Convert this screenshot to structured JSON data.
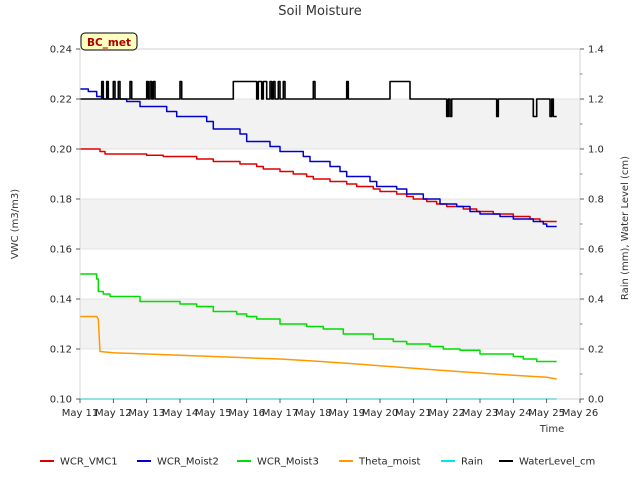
{
  "chart_data": {
    "type": "line",
    "title": "Soil Moisture",
    "site_label": "BC_met",
    "xlabel": "Time",
    "ylabel_left": "VWC (m3/m3)",
    "ylabel_right": "Rain (mm), Water Level (cm)",
    "x_range": [
      11,
      26
    ],
    "x_ticks": [
      11,
      12,
      13,
      14,
      15,
      16,
      17,
      18,
      19,
      20,
      21,
      22,
      23,
      24,
      25,
      26
    ],
    "x_tick_labels": [
      "May 11",
      "May 12",
      "May 13",
      "May 14",
      "May 15",
      "May 16",
      "May 17",
      "May 18",
      "May 19",
      "May 20",
      "May 21",
      "May 22",
      "May 23",
      "May 24",
      "May 25",
      "May 26"
    ],
    "ylim_left": [
      0.1,
      0.24
    ],
    "y_ticks_left": [
      0.1,
      0.12,
      0.14,
      0.16,
      0.18,
      0.2,
      0.22,
      0.24
    ],
    "y_tick_labels_left": [
      "0.10",
      "0.12",
      "0.14",
      "0.16",
      "0.18",
      "0.20",
      "0.22",
      "0.24"
    ],
    "ylim_right": [
      0.0,
      1.4
    ],
    "y_ticks_right": [
      0.0,
      0.2,
      0.4,
      0.6,
      0.8,
      1.0,
      1.2,
      1.4
    ],
    "y_tick_labels_right": [
      "0.0",
      "0.2",
      "0.4",
      "0.6",
      "0.8",
      "1.0",
      "1.2",
      "1.4"
    ],
    "series": [
      {
        "name": "WCR_VMC1",
        "color": "#dd0000",
        "axis": "left",
        "step": true,
        "points": [
          [
            11.0,
            0.2
          ],
          [
            11.6,
            0.199
          ],
          [
            11.75,
            0.198
          ],
          [
            13.0,
            0.1975
          ],
          [
            13.5,
            0.197
          ],
          [
            14.2,
            0.197
          ],
          [
            14.5,
            0.196
          ],
          [
            15.0,
            0.195
          ],
          [
            15.8,
            0.194
          ],
          [
            16.3,
            0.193
          ],
          [
            16.5,
            0.192
          ],
          [
            17.0,
            0.191
          ],
          [
            17.4,
            0.19
          ],
          [
            17.8,
            0.189
          ],
          [
            18.0,
            0.188
          ],
          [
            18.5,
            0.187
          ],
          [
            19.0,
            0.186
          ],
          [
            19.3,
            0.185
          ],
          [
            19.8,
            0.184
          ],
          [
            20.0,
            0.183
          ],
          [
            20.5,
            0.182
          ],
          [
            20.8,
            0.181
          ],
          [
            21.0,
            0.18
          ],
          [
            21.4,
            0.179
          ],
          [
            21.7,
            0.178
          ],
          [
            22.0,
            0.177
          ],
          [
            22.5,
            0.176
          ],
          [
            22.9,
            0.175
          ],
          [
            23.4,
            0.174
          ],
          [
            24.0,
            0.173
          ],
          [
            24.5,
            0.172
          ],
          [
            24.8,
            0.171
          ],
          [
            25.3,
            0.171
          ]
        ]
      },
      {
        "name": "WCR_Moist2",
        "color": "#0000cc",
        "axis": "left",
        "step": true,
        "points": [
          [
            11.0,
            0.224
          ],
          [
            11.25,
            0.223
          ],
          [
            11.5,
            0.221
          ],
          [
            11.7,
            0.22
          ],
          [
            12.4,
            0.219
          ],
          [
            12.8,
            0.217
          ],
          [
            13.6,
            0.215
          ],
          [
            13.9,
            0.213
          ],
          [
            14.8,
            0.211
          ],
          [
            15.0,
            0.208
          ],
          [
            15.8,
            0.206
          ],
          [
            16.0,
            0.203
          ],
          [
            16.7,
            0.201
          ],
          [
            17.0,
            0.199
          ],
          [
            17.7,
            0.197
          ],
          [
            17.9,
            0.195
          ],
          [
            18.5,
            0.193
          ],
          [
            18.8,
            0.191
          ],
          [
            19.0,
            0.189
          ],
          [
            19.7,
            0.187
          ],
          [
            19.9,
            0.185
          ],
          [
            20.5,
            0.184
          ],
          [
            20.8,
            0.182
          ],
          [
            21.3,
            0.18
          ],
          [
            21.8,
            0.178
          ],
          [
            22.3,
            0.177
          ],
          [
            22.7,
            0.175
          ],
          [
            23.0,
            0.174
          ],
          [
            23.6,
            0.173
          ],
          [
            24.0,
            0.172
          ],
          [
            24.6,
            0.171
          ],
          [
            24.9,
            0.17
          ],
          [
            25.0,
            0.169
          ],
          [
            25.3,
            0.169
          ]
        ]
      },
      {
        "name": "WCR_Moist3",
        "color": "#00dd00",
        "axis": "left",
        "step": true,
        "points": [
          [
            11.0,
            0.15
          ],
          [
            11.5,
            0.148
          ],
          [
            11.55,
            0.143
          ],
          [
            11.7,
            0.142
          ],
          [
            11.9,
            0.141
          ],
          [
            12.8,
            0.139
          ],
          [
            14.0,
            0.138
          ],
          [
            14.5,
            0.137
          ],
          [
            15.0,
            0.135
          ],
          [
            15.7,
            0.134
          ],
          [
            16.0,
            0.133
          ],
          [
            16.3,
            0.132
          ],
          [
            16.8,
            0.132
          ],
          [
            17.0,
            0.13
          ],
          [
            17.5,
            0.13
          ],
          [
            17.8,
            0.129
          ],
          [
            18.3,
            0.128
          ],
          [
            18.9,
            0.126
          ],
          [
            19.8,
            0.124
          ],
          [
            20.4,
            0.123
          ],
          [
            20.8,
            0.122
          ],
          [
            21.5,
            0.121
          ],
          [
            21.9,
            0.12
          ],
          [
            22.4,
            0.1195
          ],
          [
            23.0,
            0.118
          ],
          [
            24.0,
            0.117
          ],
          [
            24.3,
            0.116
          ],
          [
            24.7,
            0.115
          ],
          [
            25.3,
            0.115
          ]
        ]
      },
      {
        "name": "Theta_moist",
        "color": "#ff9900",
        "axis": "left",
        "step": false,
        "points": [
          [
            11.0,
            0.133
          ],
          [
            11.5,
            0.133
          ],
          [
            11.55,
            0.132
          ],
          [
            11.6,
            0.119
          ],
          [
            12.0,
            0.1185
          ],
          [
            13.0,
            0.118
          ],
          [
            14.0,
            0.1175
          ],
          [
            15.0,
            0.117
          ],
          [
            16.0,
            0.1165
          ],
          [
            17.0,
            0.116
          ],
          [
            18.0,
            0.1152
          ],
          [
            19.0,
            0.1143
          ],
          [
            20.0,
            0.1133
          ],
          [
            21.0,
            0.1123
          ],
          [
            22.0,
            0.1113
          ],
          [
            23.0,
            0.1104
          ],
          [
            24.0,
            0.1095
          ],
          [
            25.0,
            0.1087
          ],
          [
            25.3,
            0.108
          ]
        ]
      },
      {
        "name": "Rain",
        "color": "#00e5e5",
        "axis": "right",
        "step": false,
        "points": [
          [
            11.0,
            0.0
          ],
          [
            25.3,
            0.0
          ]
        ]
      },
      {
        "name": "WaterLevel_cm",
        "color": "#000000",
        "axis": "right",
        "step": true,
        "points": [
          [
            11.0,
            1.2
          ],
          [
            11.6,
            1.2
          ],
          [
            11.65,
            1.27
          ],
          [
            11.7,
            1.2
          ],
          [
            11.8,
            1.27
          ],
          [
            11.85,
            1.2
          ],
          [
            12.0,
            1.27
          ],
          [
            12.05,
            1.2
          ],
          [
            12.15,
            1.27
          ],
          [
            12.2,
            1.2
          ],
          [
            12.5,
            1.27
          ],
          [
            12.55,
            1.2
          ],
          [
            13.0,
            1.27
          ],
          [
            13.05,
            1.2
          ],
          [
            13.1,
            1.27
          ],
          [
            13.15,
            1.2
          ],
          [
            13.2,
            1.27
          ],
          [
            13.25,
            1.2
          ],
          [
            14.0,
            1.27
          ],
          [
            14.05,
            1.2
          ],
          [
            15.6,
            1.27
          ],
          [
            16.3,
            1.2
          ],
          [
            16.35,
            1.27
          ],
          [
            16.45,
            1.2
          ],
          [
            16.5,
            1.27
          ],
          [
            16.6,
            1.2
          ],
          [
            16.7,
            1.27
          ],
          [
            16.75,
            1.2
          ],
          [
            16.8,
            1.27
          ],
          [
            16.85,
            1.2
          ],
          [
            16.95,
            1.27
          ],
          [
            17.0,
            1.2
          ],
          [
            17.1,
            1.27
          ],
          [
            17.15,
            1.2
          ],
          [
            18.0,
            1.27
          ],
          [
            18.05,
            1.2
          ],
          [
            19.0,
            1.27
          ],
          [
            19.05,
            1.2
          ],
          [
            20.3,
            1.27
          ],
          [
            20.9,
            1.2
          ],
          [
            22.0,
            1.13
          ],
          [
            22.05,
            1.2
          ],
          [
            22.1,
            1.13
          ],
          [
            22.15,
            1.2
          ],
          [
            23.5,
            1.13
          ],
          [
            23.55,
            1.2
          ],
          [
            24.6,
            1.13
          ],
          [
            24.7,
            1.2
          ],
          [
            25.1,
            1.13
          ],
          [
            25.15,
            1.2
          ],
          [
            25.2,
            1.13
          ],
          [
            25.3,
            1.13
          ]
        ]
      }
    ]
  }
}
